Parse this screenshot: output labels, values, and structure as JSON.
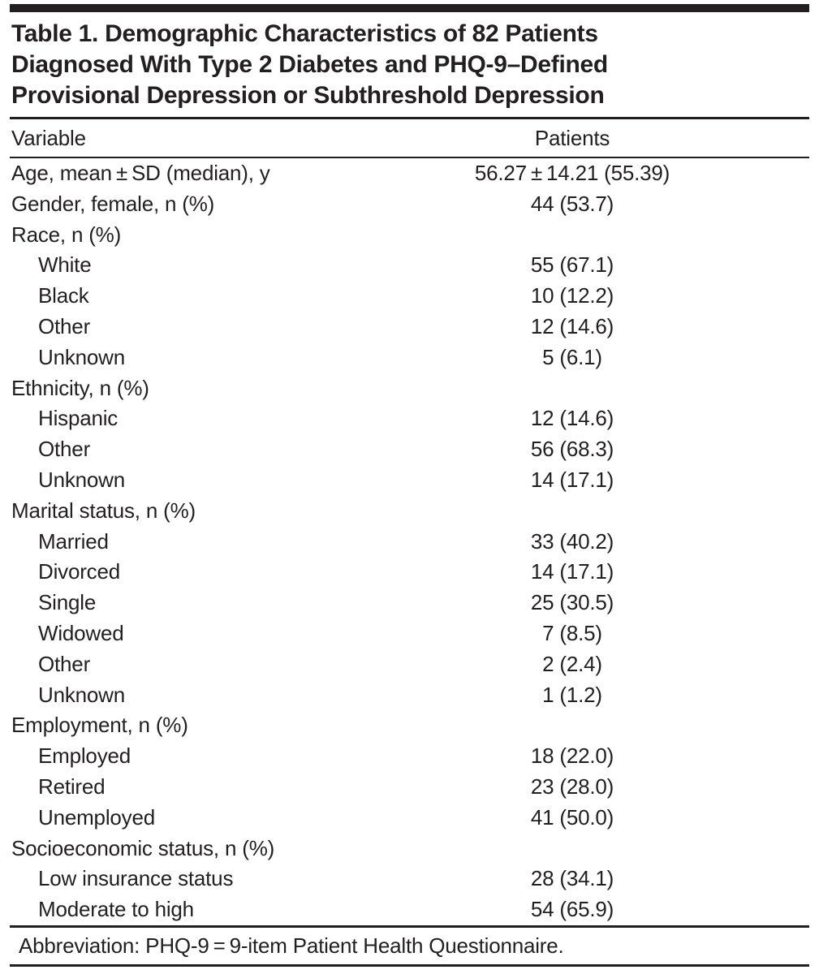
{
  "table": {
    "title_lines": [
      "Table 1. Demographic Characteristics of 82 Patients",
      "Diagnosed With Type 2 Diabetes and PHQ-9–Defined",
      "Provisional Depression or Subthreshold Depression"
    ],
    "columns": [
      "Variable",
      "Patients"
    ],
    "rows": [
      {
        "label": "Age, mean ± SD (median), y",
        "value": "56.27 ± 14.21 (55.39)",
        "indent": 0
      },
      {
        "label": "Gender, female, n (%)",
        "value": "44 (53.7)",
        "indent": 0
      },
      {
        "label": "Race, n (%)",
        "value": "",
        "indent": 0
      },
      {
        "label": "White",
        "value": "55 (67.1)",
        "indent": 1
      },
      {
        "label": "Black",
        "value": "10 (12.2)",
        "indent": 1
      },
      {
        "label": "Other",
        "value": "12 (14.6)",
        "indent": 1
      },
      {
        "label": "Unknown",
        "value": "5 (6.1)",
        "indent": 1
      },
      {
        "label": "Ethnicity, n (%)",
        "value": "",
        "indent": 0
      },
      {
        "label": "Hispanic",
        "value": "12 (14.6)",
        "indent": 1
      },
      {
        "label": "Other",
        "value": "56 (68.3)",
        "indent": 1
      },
      {
        "label": "Unknown",
        "value": "14 (17.1)",
        "indent": 1
      },
      {
        "label": "Marital status, n (%)",
        "value": "",
        "indent": 0
      },
      {
        "label": "Married",
        "value": "33 (40.2)",
        "indent": 1
      },
      {
        "label": "Divorced",
        "value": "14 (17.1)",
        "indent": 1
      },
      {
        "label": "Single",
        "value": "25 (30.5)",
        "indent": 1
      },
      {
        "label": "Widowed",
        "value": "7 (8.5)",
        "indent": 1
      },
      {
        "label": "Other",
        "value": "2 (2.4)",
        "indent": 1
      },
      {
        "label": "Unknown",
        "value": "1 (1.2)",
        "indent": 1
      },
      {
        "label": "Employment, n (%)",
        "value": "",
        "indent": 0
      },
      {
        "label": "Employed",
        "value": "18 (22.0)",
        "indent": 1
      },
      {
        "label": "Retired",
        "value": "23 (28.0)",
        "indent": 1
      },
      {
        "label": "Unemployed",
        "value": "41 (50.0)",
        "indent": 1
      },
      {
        "label": "Socioeconomic status, n (%)",
        "value": "",
        "indent": 0
      },
      {
        "label": "Low insurance status",
        "value": "28 (34.1)",
        "indent": 1
      },
      {
        "label": "Moderate to high",
        "value": "54 (65.9)",
        "indent": 1
      }
    ],
    "footnote": "Abbreviation: PHQ-9 = 9-item Patient Health Questionnaire.",
    "colors": {
      "ink": "#231f20",
      "background": "#ffffff"
    }
  }
}
